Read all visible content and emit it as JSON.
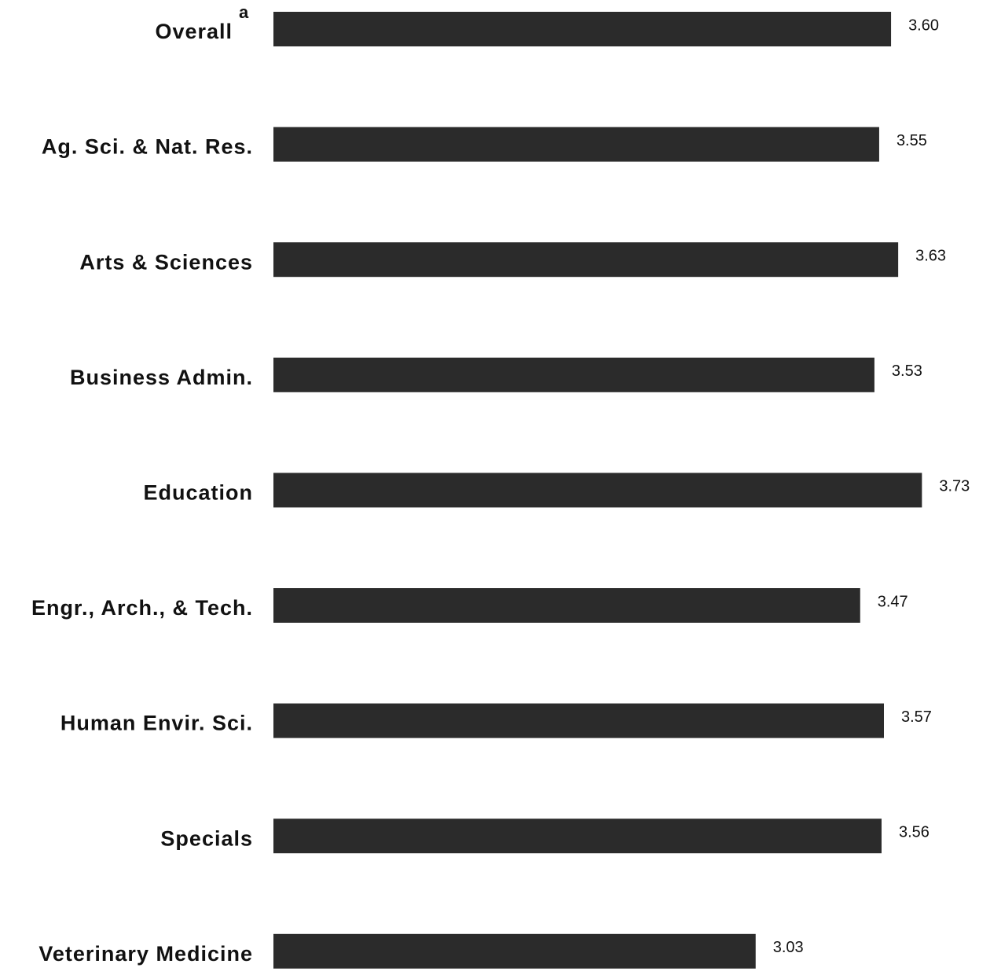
{
  "chart_data": {
    "type": "barh",
    "categories": [
      "Overall",
      "Ag. Sci. & Nat. Res.",
      "Arts & Sciences",
      "Business Admin.",
      "Education",
      "Engr., Arch., & Tech.",
      "Human Envir. Sci.",
      "Specials",
      "Veterinary Medicine"
    ],
    "values": [
      3.6,
      3.55,
      3.63,
      3.53,
      3.73,
      3.47,
      3.57,
      3.56,
      3.03
    ],
    "value_labels": [
      "3.60",
      "3.55",
      "3.63",
      "3.53",
      "3.73",
      "3.47",
      "3.57",
      "3.56",
      "3.03"
    ],
    "annotations": [
      {
        "category": "Overall",
        "text": "a"
      }
    ],
    "color": "#2b2b2b",
    "xlim": [
      1,
      4
    ]
  }
}
